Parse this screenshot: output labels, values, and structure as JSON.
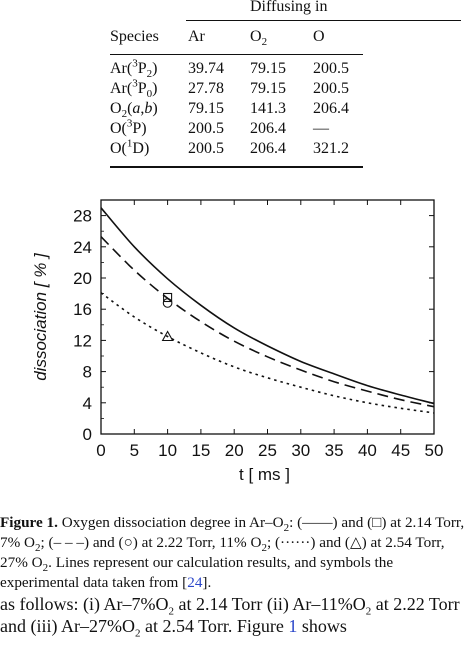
{
  "table": {
    "span_header": "Diffusing in",
    "col_headers": [
      "Species",
      "Ar",
      "O2",
      "O"
    ],
    "rows": [
      {
        "species": "Ar(3P2)",
        "ar": "39.74",
        "o2": "79.15",
        "o": "200.5"
      },
      {
        "species": "Ar(3P0)",
        "ar": "27.78",
        "o2": "79.15",
        "o": "200.5"
      },
      {
        "species": "O2(a,b)",
        "ar": "79.15",
        "o2": "141.3",
        "o": "206.4"
      },
      {
        "species": "O(3P)",
        "ar": "200.5",
        "o2": "206.4",
        "o": "—"
      },
      {
        "species": "O(1D)",
        "ar": "200.5",
        "o2": "206.4",
        "o": "321.2"
      }
    ]
  },
  "chart_data": {
    "type": "line",
    "xlabel": "t [ ms ]",
    "ylabel": "dissociation [ % ]",
    "xlim": [
      0,
      50
    ],
    "ylim": [
      0,
      30
    ],
    "x_ticks": [
      0,
      5,
      10,
      15,
      20,
      25,
      30,
      35,
      40,
      45,
      50
    ],
    "y_ticks": [
      0,
      4,
      8,
      12,
      16,
      20,
      24,
      28
    ],
    "series": [
      {
        "style": "solid",
        "x": [
          0,
          5,
          10,
          15,
          20,
          25,
          30,
          35,
          40,
          45,
          50
        ],
        "y": [
          29.0,
          24.0,
          19.9,
          16.5,
          13.6,
          11.3,
          9.3,
          7.7,
          6.2,
          5.0,
          3.9
        ]
      },
      {
        "style": "dashed",
        "x": [
          0,
          5,
          10,
          15,
          20,
          25,
          30,
          35,
          40,
          45,
          50
        ],
        "y": [
          25.3,
          21.0,
          17.4,
          14.4,
          11.9,
          9.9,
          8.2,
          6.7,
          5.5,
          4.4,
          3.5
        ]
      },
      {
        "style": "dotted",
        "x": [
          0,
          5,
          10,
          15,
          20,
          25,
          30,
          35,
          40,
          45,
          50
        ],
        "y": [
          18.1,
          15.0,
          12.5,
          10.4,
          8.6,
          7.2,
          6.0,
          4.9,
          4.0,
          3.3,
          2.7
        ]
      }
    ],
    "points": [
      {
        "marker": "square",
        "x": 10,
        "y": 17.5
      },
      {
        "marker": "circle",
        "x": 10,
        "y": 16.8
      },
      {
        "marker": "triangle",
        "x": 10,
        "y": 12.5
      }
    ]
  },
  "caption": {
    "label": "Figure 1.",
    "text": "Oxygen dissociation degree in Ar–O2: (——) and (□) at 2.14 Torr, 7% O2; (– – –) and (○) at 2.22 Torr, 11% O2; (······) and (△) at 2.54 Torr, 27% O2. Lines represent our calculation results, and symbols the experimental data taken from [24].",
    "ref": "24"
  },
  "body_text": {
    "text": "as follows: (i) Ar–7%O2 at 2.14 Torr (ii) Ar–11%O2 at 2.22 Torr and (iii) Ar–27%O2 at 2.54 Torr. Figure 1 shows",
    "figure_ref": "1"
  }
}
